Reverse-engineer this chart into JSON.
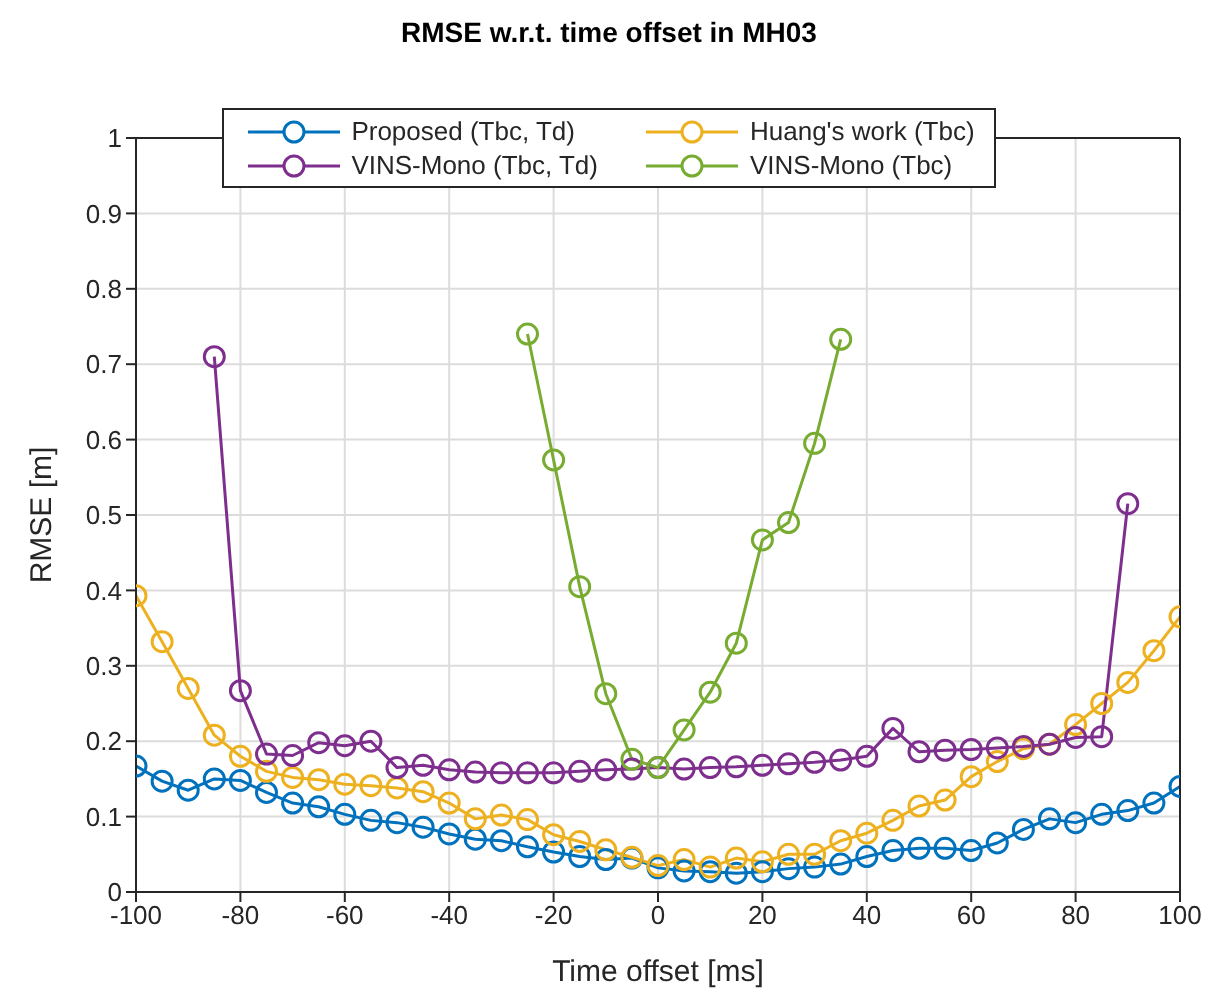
{
  "chart_data": {
    "type": "line",
    "title": "RMSE w.r.t. time offset in MH03",
    "xlabel": "Time offset [ms]",
    "ylabel": "RMSE [m]",
    "xlim": [
      -100,
      100
    ],
    "xticks": [
      -100,
      -80,
      -60,
      -40,
      -20,
      0,
      20,
      40,
      60,
      80,
      100
    ],
    "ylim": [
      0,
      1
    ],
    "yticks": [
      0,
      0.1,
      0.2,
      0.3,
      0.4,
      0.5,
      0.6,
      0.7,
      0.8,
      0.9,
      1
    ],
    "grid": true,
    "legend": "top",
    "marker": "circle",
    "line_style": "solid",
    "series": [
      {
        "name": "Proposed (Tbc, Td)",
        "color": "#0072bd",
        "x": [
          -100,
          -95,
          -90,
          -85,
          -80,
          -75,
          -70,
          -65,
          -60,
          -55,
          -50,
          -45,
          -40,
          -35,
          -30,
          -25,
          -20,
          -15,
          -10,
          -5,
          0,
          5,
          10,
          15,
          20,
          25,
          30,
          35,
          40,
          45,
          50,
          55,
          60,
          65,
          70,
          75,
          80,
          85,
          90,
          95,
          100
        ],
        "values": [
          0.167,
          0.147,
          0.135,
          0.15,
          0.148,
          0.132,
          0.118,
          0.113,
          0.103,
          0.095,
          0.092,
          0.086,
          0.077,
          0.07,
          0.068,
          0.06,
          0.053,
          0.047,
          0.043,
          0.045,
          0.032,
          0.028,
          0.027,
          0.025,
          0.027,
          0.031,
          0.033,
          0.037,
          0.047,
          0.055,
          0.058,
          0.058,
          0.055,
          0.065,
          0.083,
          0.097,
          0.092,
          0.103,
          0.108,
          0.118,
          0.14
        ]
      },
      {
        "name": "Huang's work (Tbc)",
        "color": "#edb120",
        "x": [
          -100,
          -95,
          -90,
          -85,
          -80,
          -75,
          -70,
          -65,
          -60,
          -55,
          -50,
          -45,
          -40,
          -35,
          -30,
          -25,
          -20,
          -15,
          -10,
          -5,
          0,
          5,
          10,
          15,
          20,
          25,
          30,
          35,
          40,
          45,
          50,
          55,
          60,
          65,
          70,
          75,
          80,
          85,
          90,
          95,
          100
        ],
        "values": [
          0.393,
          0.332,
          0.27,
          0.208,
          0.18,
          0.16,
          0.152,
          0.149,
          0.143,
          0.141,
          0.138,
          0.133,
          0.118,
          0.097,
          0.102,
          0.096,
          0.076,
          0.067,
          0.056,
          0.046,
          0.035,
          0.043,
          0.033,
          0.045,
          0.04,
          0.05,
          0.05,
          0.068,
          0.078,
          0.095,
          0.114,
          0.122,
          0.153,
          0.173,
          0.19,
          0.196,
          0.222,
          0.25,
          0.278,
          0.32,
          0.365
        ]
      },
      {
        "name": "VINS-Mono (Tbc, Td)",
        "color": "#7e2f8e",
        "x": [
          -85,
          -80,
          -75,
          -70,
          -65,
          -60,
          -55,
          -50,
          -45,
          -40,
          -35,
          -30,
          -25,
          -20,
          -15,
          -10,
          -5,
          0,
          5,
          10,
          15,
          20,
          25,
          30,
          35,
          40,
          45,
          50,
          55,
          60,
          65,
          70,
          75,
          80,
          85,
          90
        ],
        "values": [
          0.71,
          0.267,
          0.183,
          0.181,
          0.198,
          0.194,
          0.2,
          0.165,
          0.168,
          0.162,
          0.159,
          0.158,
          0.158,
          0.158,
          0.16,
          0.162,
          0.163,
          0.165,
          0.163,
          0.165,
          0.166,
          0.168,
          0.17,
          0.172,
          0.175,
          0.18,
          0.217,
          0.186,
          0.188,
          0.189,
          0.191,
          0.193,
          0.196,
          0.205,
          0.206,
          0.515
        ]
      },
      {
        "name": "VINS-Mono (Tbc)",
        "color": "#77ac30",
        "x": [
          -25,
          -20,
          -15,
          -10,
          -5,
          0,
          5,
          10,
          15,
          20,
          25,
          30,
          35
        ],
        "values": [
          0.74,
          0.573,
          0.405,
          0.263,
          0.176,
          0.165,
          0.215,
          0.265,
          0.33,
          0.467,
          0.49,
          0.595,
          0.733
        ]
      }
    ]
  }
}
